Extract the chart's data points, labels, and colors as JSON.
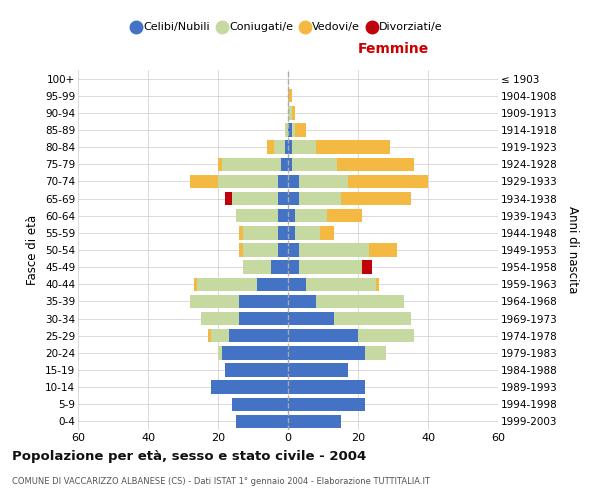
{
  "age_groups": [
    "100+",
    "95-99",
    "90-94",
    "85-89",
    "80-84",
    "75-79",
    "70-74",
    "65-69",
    "60-64",
    "55-59",
    "50-54",
    "45-49",
    "40-44",
    "35-39",
    "30-34",
    "25-29",
    "20-24",
    "15-19",
    "10-14",
    "5-9",
    "0-4"
  ],
  "birth_years": [
    "≤ 1903",
    "1904-1908",
    "1909-1913",
    "1914-1918",
    "1919-1923",
    "1924-1928",
    "1929-1933",
    "1934-1938",
    "1939-1943",
    "1944-1948",
    "1949-1953",
    "1954-1958",
    "1959-1963",
    "1964-1968",
    "1969-1973",
    "1974-1978",
    "1979-1983",
    "1984-1988",
    "1989-1993",
    "1994-1998",
    "1999-2003"
  ],
  "colors": {
    "celibi": "#4472c4",
    "coniugati": "#c5d9a0",
    "vedovi": "#f4b942",
    "divorziati": "#c0000b"
  },
  "male": {
    "celibi": [
      0,
      0,
      0,
      0,
      1,
      2,
      3,
      3,
      3,
      3,
      3,
      5,
      9,
      14,
      14,
      17,
      19,
      18,
      22,
      16,
      15
    ],
    "coniugati": [
      0,
      0,
      0,
      1,
      3,
      17,
      17,
      13,
      12,
      10,
      10,
      8,
      17,
      14,
      11,
      5,
      1,
      0,
      0,
      0,
      0
    ],
    "vedovi": [
      0,
      0,
      0,
      0,
      2,
      1,
      8,
      0,
      0,
      1,
      1,
      0,
      1,
      0,
      0,
      1,
      0,
      0,
      0,
      0,
      0
    ],
    "divorziati": [
      0,
      0,
      0,
      0,
      0,
      0,
      0,
      2,
      0,
      0,
      0,
      0,
      0,
      0,
      0,
      0,
      0,
      0,
      0,
      0,
      0
    ]
  },
  "female": {
    "nubili": [
      0,
      0,
      0,
      1,
      1,
      1,
      3,
      3,
      2,
      2,
      3,
      3,
      5,
      8,
      13,
      20,
      22,
      17,
      22,
      22,
      15
    ],
    "coniugati": [
      0,
      0,
      1,
      1,
      7,
      13,
      14,
      12,
      9,
      7,
      20,
      18,
      20,
      25,
      22,
      16,
      6,
      0,
      0,
      0,
      0
    ],
    "vedovi": [
      0,
      1,
      1,
      3,
      21,
      22,
      23,
      20,
      10,
      4,
      8,
      0,
      1,
      0,
      0,
      0,
      0,
      0,
      0,
      0,
      0
    ],
    "divorziati": [
      0,
      0,
      0,
      0,
      0,
      0,
      0,
      0,
      0,
      0,
      0,
      3,
      0,
      0,
      0,
      0,
      0,
      0,
      0,
      0,
      0
    ]
  },
  "xlim": 60,
  "title": "Popolazione per età, sesso e stato civile - 2004",
  "subtitle": "COMUNE DI VACCARIZZO ALBANESE (CS) - Dati ISTAT 1° gennaio 2004 - Elaborazione TUTTITALIA.IT",
  "ylabel_left": "Fasce di età",
  "ylabel_right": "Anni di nascita",
  "femmine_label": "Femmine",
  "legend_labels": [
    "Celibi/Nubili",
    "Coniugati/e",
    "Vedovi/e",
    "Divorziati/e"
  ],
  "background_color": "#ffffff",
  "grid_color": "#cccccc"
}
